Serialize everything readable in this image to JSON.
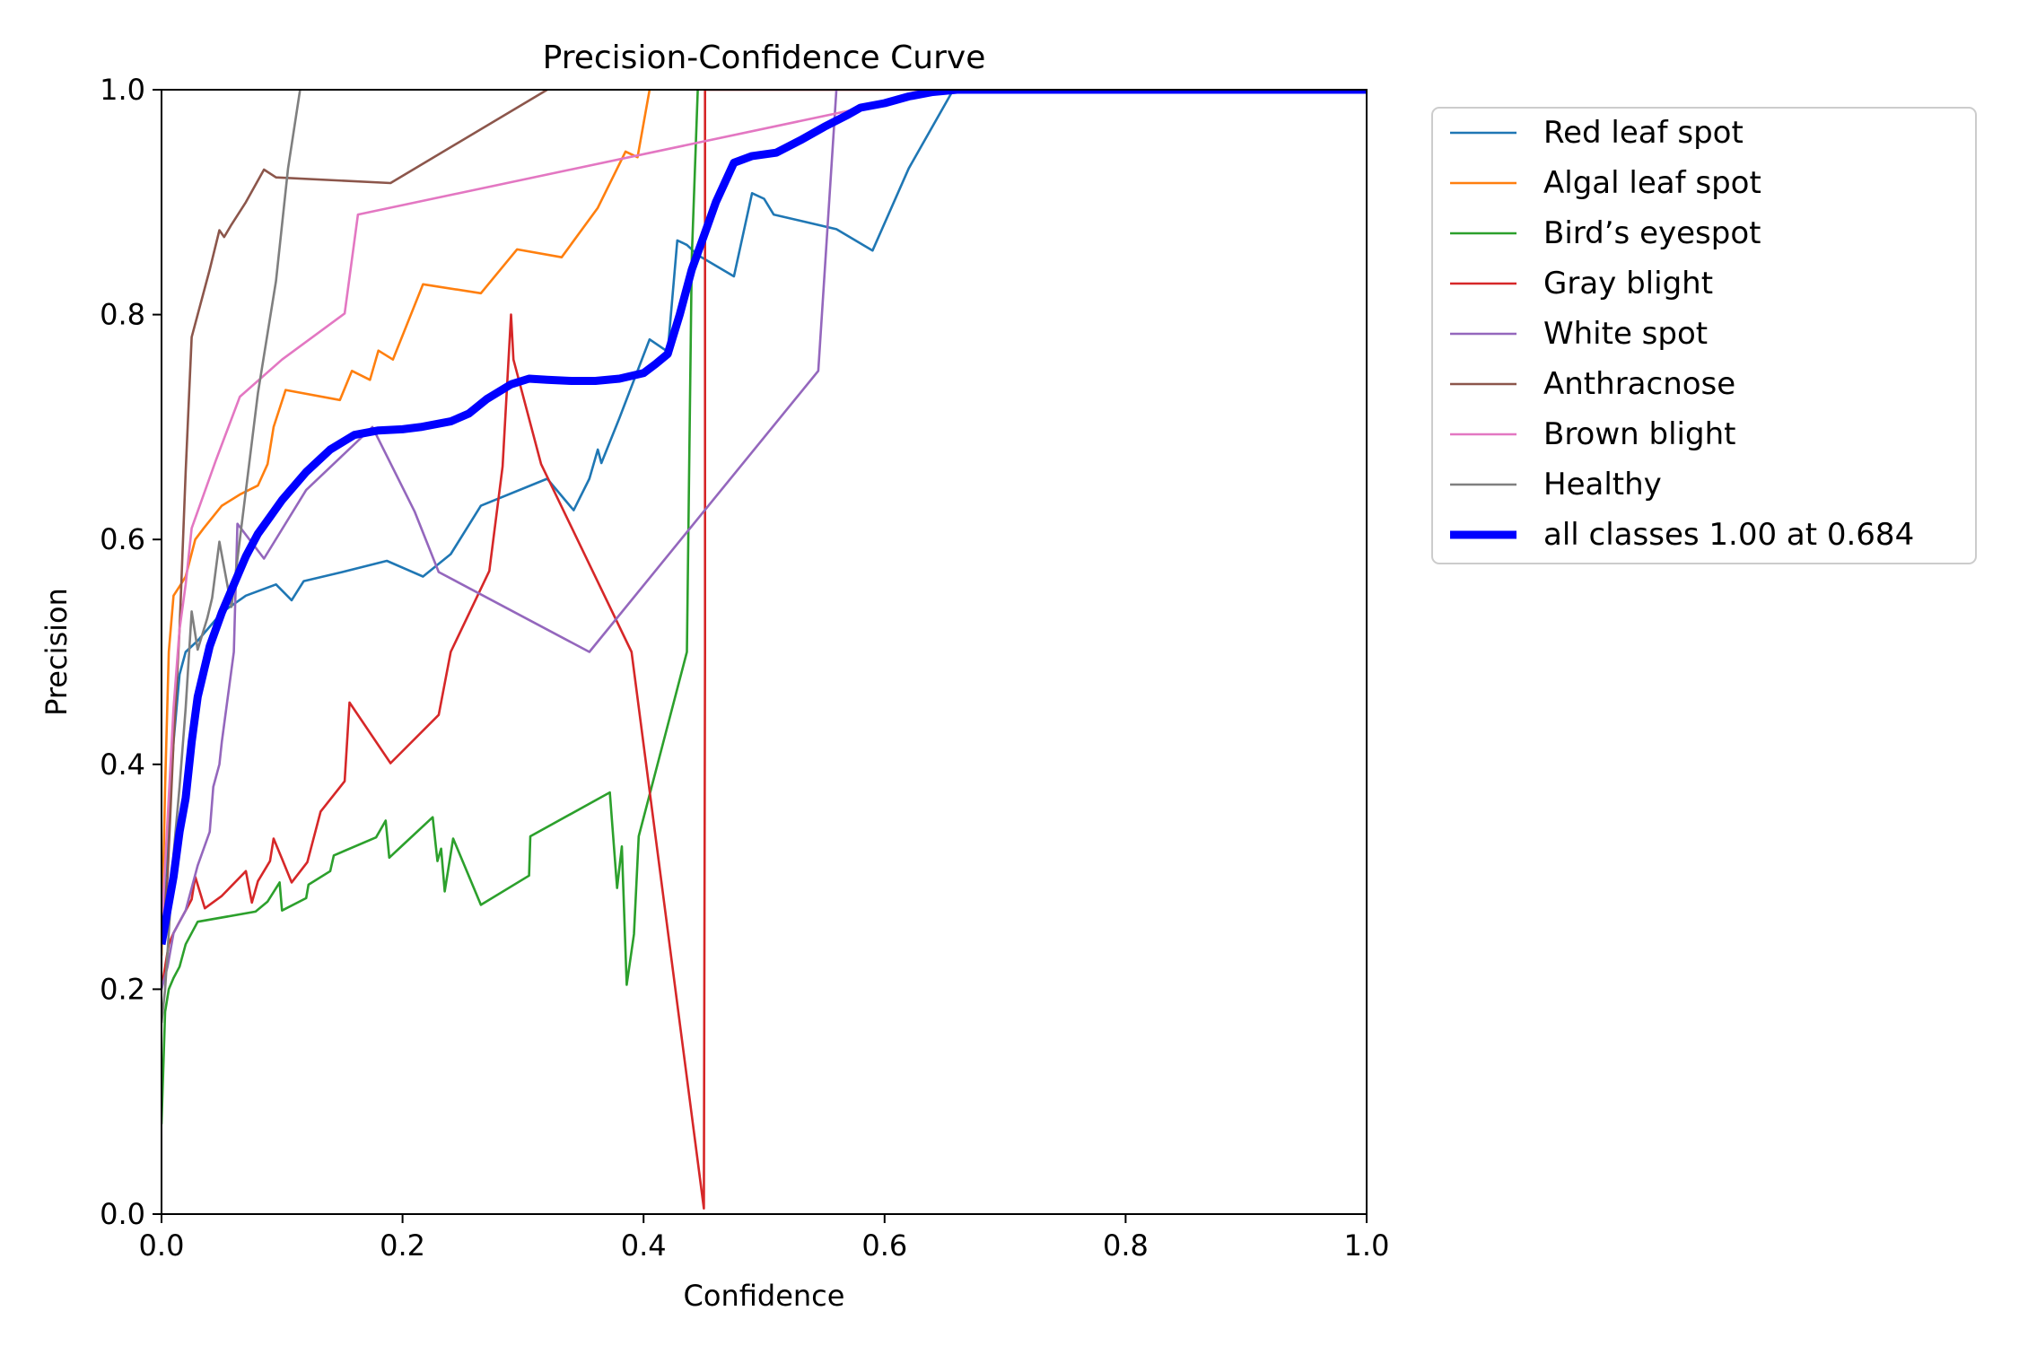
{
  "chart_data": {
    "type": "line",
    "title": "Precision-Confidence Curve",
    "xlabel": "Confidence",
    "ylabel": "Precision",
    "xlim": [
      0,
      1
    ],
    "ylim": [
      0,
      1
    ],
    "xticks": [
      0.0,
      0.2,
      0.4,
      0.6,
      0.8,
      1.0
    ],
    "yticks": [
      0.0,
      0.2,
      0.4,
      0.6,
      0.8,
      1.0
    ],
    "xtick_labels": [
      "0.0",
      "0.2",
      "0.4",
      "0.6",
      "0.8",
      "1.0"
    ],
    "ytick_labels": [
      "0.0",
      "0.2",
      "0.4",
      "0.6",
      "0.8",
      "1.0"
    ],
    "grid": false,
    "legend_position": "outside-right-top",
    "series": [
      {
        "name": "Red leaf spot",
        "color": "#1f77b4",
        "x": [
          0.0,
          0.005,
          0.01,
          0.015,
          0.02,
          0.03,
          0.05,
          0.07,
          0.095,
          0.108,
          0.118,
          0.15,
          0.187,
          0.217,
          0.24,
          0.265,
          0.32,
          0.342,
          0.355,
          0.362,
          0.365,
          0.38,
          0.405,
          0.42,
          0.428,
          0.436,
          0.445,
          0.475,
          0.49,
          0.5,
          0.508,
          0.56,
          0.59,
          0.62,
          0.657,
          0.7,
          1.0
        ],
        "y": [
          0.25,
          0.33,
          0.42,
          0.48,
          0.5,
          0.51,
          0.535,
          0.55,
          0.56,
          0.546,
          0.563,
          0.571,
          0.581,
          0.567,
          0.587,
          0.63,
          0.654,
          0.626,
          0.654,
          0.68,
          0.668,
          0.708,
          0.778,
          0.767,
          0.866,
          0.862,
          0.853,
          0.834,
          0.908,
          0.903,
          0.889,
          0.876,
          0.857,
          0.93,
          1.0,
          1.0,
          1.0
        ]
      },
      {
        "name": "Algal leaf spot",
        "color": "#ff7f0e",
        "x": [
          0.0,
          0.003,
          0.006,
          0.01,
          0.016,
          0.02,
          0.028,
          0.035,
          0.05,
          0.065,
          0.08,
          0.088,
          0.093,
          0.103,
          0.148,
          0.158,
          0.173,
          0.18,
          0.192,
          0.217,
          0.265,
          0.295,
          0.332,
          0.362,
          0.385,
          0.395,
          0.405
        ],
        "y": [
          0.23,
          0.38,
          0.5,
          0.55,
          0.56,
          0.567,
          0.6,
          0.61,
          0.63,
          0.64,
          0.648,
          0.667,
          0.7,
          0.733,
          0.724,
          0.75,
          0.742,
          0.768,
          0.76,
          0.827,
          0.819,
          0.858,
          0.851,
          0.895,
          0.945,
          0.94,
          1.0
        ]
      },
      {
        "name": "Bird’s eyespot",
        "color": "#2ca02c",
        "x": [
          0.0,
          0.003,
          0.006,
          0.01,
          0.015,
          0.02,
          0.03,
          0.078,
          0.088,
          0.098,
          0.1,
          0.12,
          0.122,
          0.14,
          0.143,
          0.178,
          0.186,
          0.189,
          0.2,
          0.225,
          0.229,
          0.232,
          0.235,
          0.242,
          0.265,
          0.305,
          0.306,
          0.372,
          0.378,
          0.382,
          0.386,
          0.392,
          0.396,
          0.436,
          0.44,
          0.445
        ],
        "y": [
          0.08,
          0.18,
          0.2,
          0.21,
          0.22,
          0.24,
          0.26,
          0.269,
          0.278,
          0.295,
          0.27,
          0.281,
          0.293,
          0.305,
          0.319,
          0.335,
          0.35,
          0.317,
          0.328,
          0.353,
          0.314,
          0.325,
          0.287,
          0.334,
          0.275,
          0.301,
          0.336,
          0.375,
          0.29,
          0.327,
          0.204,
          0.249,
          0.336,
          0.5,
          0.85,
          1.0
        ]
      },
      {
        "name": "Gray blight",
        "color": "#d62728",
        "x": [
          0.0,
          0.003,
          0.006,
          0.01,
          0.015,
          0.02,
          0.025,
          0.028,
          0.036,
          0.05,
          0.07,
          0.075,
          0.08,
          0.09,
          0.093,
          0.1,
          0.108,
          0.121,
          0.132,
          0.152,
          0.154,
          0.156,
          0.19,
          0.23,
          0.24,
          0.272,
          0.283,
          0.29,
          0.292,
          0.315,
          0.39,
          0.45,
          0.451,
          0.451,
          1.0
        ],
        "y": [
          0.2,
          0.22,
          0.24,
          0.25,
          0.26,
          0.27,
          0.28,
          0.3,
          0.272,
          0.283,
          0.305,
          0.277,
          0.296,
          0.314,
          0.334,
          0.316,
          0.295,
          0.313,
          0.358,
          0.385,
          0.42,
          0.455,
          0.401,
          0.444,
          0.5,
          0.572,
          0.665,
          0.8,
          0.76,
          0.667,
          0.5,
          0.005,
          0.5,
          1.0,
          1.0
        ]
      },
      {
        "name": "White spot",
        "color": "#9467bd",
        "x": [
          0.0,
          0.005,
          0.01,
          0.02,
          0.025,
          0.03,
          0.04,
          0.043,
          0.048,
          0.05,
          0.055,
          0.06,
          0.063,
          0.085,
          0.12,
          0.175,
          0.21,
          0.23,
          0.355,
          0.545,
          0.56
        ],
        "y": [
          0.2,
          0.22,
          0.25,
          0.27,
          0.29,
          0.31,
          0.34,
          0.38,
          0.4,
          0.42,
          0.46,
          0.5,
          0.614,
          0.583,
          0.644,
          0.7,
          0.625,
          0.571,
          0.5,
          0.75,
          1.0
        ]
      },
      {
        "name": "Anthracnose",
        "color": "#8c564b",
        "x": [
          0.0,
          0.005,
          0.01,
          0.015,
          0.02,
          0.025,
          0.03,
          0.04,
          0.048,
          0.052,
          0.058,
          0.07,
          0.085,
          0.095,
          0.19,
          0.32
        ],
        "y": [
          0.24,
          0.3,
          0.42,
          0.52,
          0.66,
          0.78,
          0.8,
          0.84,
          0.875,
          0.869,
          0.88,
          0.9,
          0.929,
          0.922,
          0.917,
          1.0
        ]
      },
      {
        "name": "Brown blight",
        "color": "#e377c2",
        "x": [
          0.0,
          0.005,
          0.01,
          0.015,
          0.02,
          0.025,
          0.035,
          0.045,
          0.065,
          0.1,
          0.152,
          0.163,
          0.6,
          0.66,
          1.0
        ],
        "y": [
          0.25,
          0.35,
          0.45,
          0.52,
          0.56,
          0.61,
          0.64,
          0.67,
          0.727,
          0.76,
          0.801,
          0.889,
          0.988,
          1.0,
          1.0
        ]
      },
      {
        "name": "Healthy",
        "color": "#7f7f7f",
        "x": [
          0.0,
          0.003,
          0.006,
          0.01,
          0.015,
          0.02,
          0.025,
          0.03,
          0.038,
          0.042,
          0.048,
          0.058,
          0.065,
          0.08,
          0.095,
          0.105,
          0.115
        ],
        "y": [
          0.17,
          0.2,
          0.25,
          0.32,
          0.38,
          0.45,
          0.536,
          0.502,
          0.53,
          0.548,
          0.598,
          0.54,
          0.6,
          0.73,
          0.83,
          0.93,
          1.0
        ]
      },
      {
        "name": "all classes 1.00 at 0.684",
        "color": "#0000ff",
        "bold": true,
        "x": [
          0.0,
          0.005,
          0.01,
          0.015,
          0.02,
          0.025,
          0.03,
          0.04,
          0.05,
          0.06,
          0.07,
          0.08,
          0.09,
          0.1,
          0.12,
          0.14,
          0.16,
          0.18,
          0.2,
          0.215,
          0.24,
          0.255,
          0.27,
          0.29,
          0.305,
          0.32,
          0.34,
          0.36,
          0.38,
          0.4,
          0.41,
          0.42,
          0.43,
          0.44,
          0.45,
          0.46,
          0.475,
          0.49,
          0.51,
          0.53,
          0.55,
          0.57,
          0.58,
          0.6,
          0.62,
          0.64,
          0.66,
          0.684,
          0.7,
          1.0
        ],
        "y": [
          0.24,
          0.27,
          0.3,
          0.34,
          0.37,
          0.42,
          0.46,
          0.505,
          0.535,
          0.56,
          0.585,
          0.605,
          0.62,
          0.635,
          0.66,
          0.68,
          0.693,
          0.697,
          0.698,
          0.7,
          0.705,
          0.712,
          0.725,
          0.738,
          0.743,
          0.742,
          0.741,
          0.741,
          0.743,
          0.748,
          0.756,
          0.765,
          0.8,
          0.84,
          0.87,
          0.9,
          0.935,
          0.941,
          0.944,
          0.955,
          0.967,
          0.978,
          0.984,
          0.988,
          0.994,
          0.998,
          1.0,
          1.0,
          1.0,
          1.0
        ]
      }
    ]
  }
}
